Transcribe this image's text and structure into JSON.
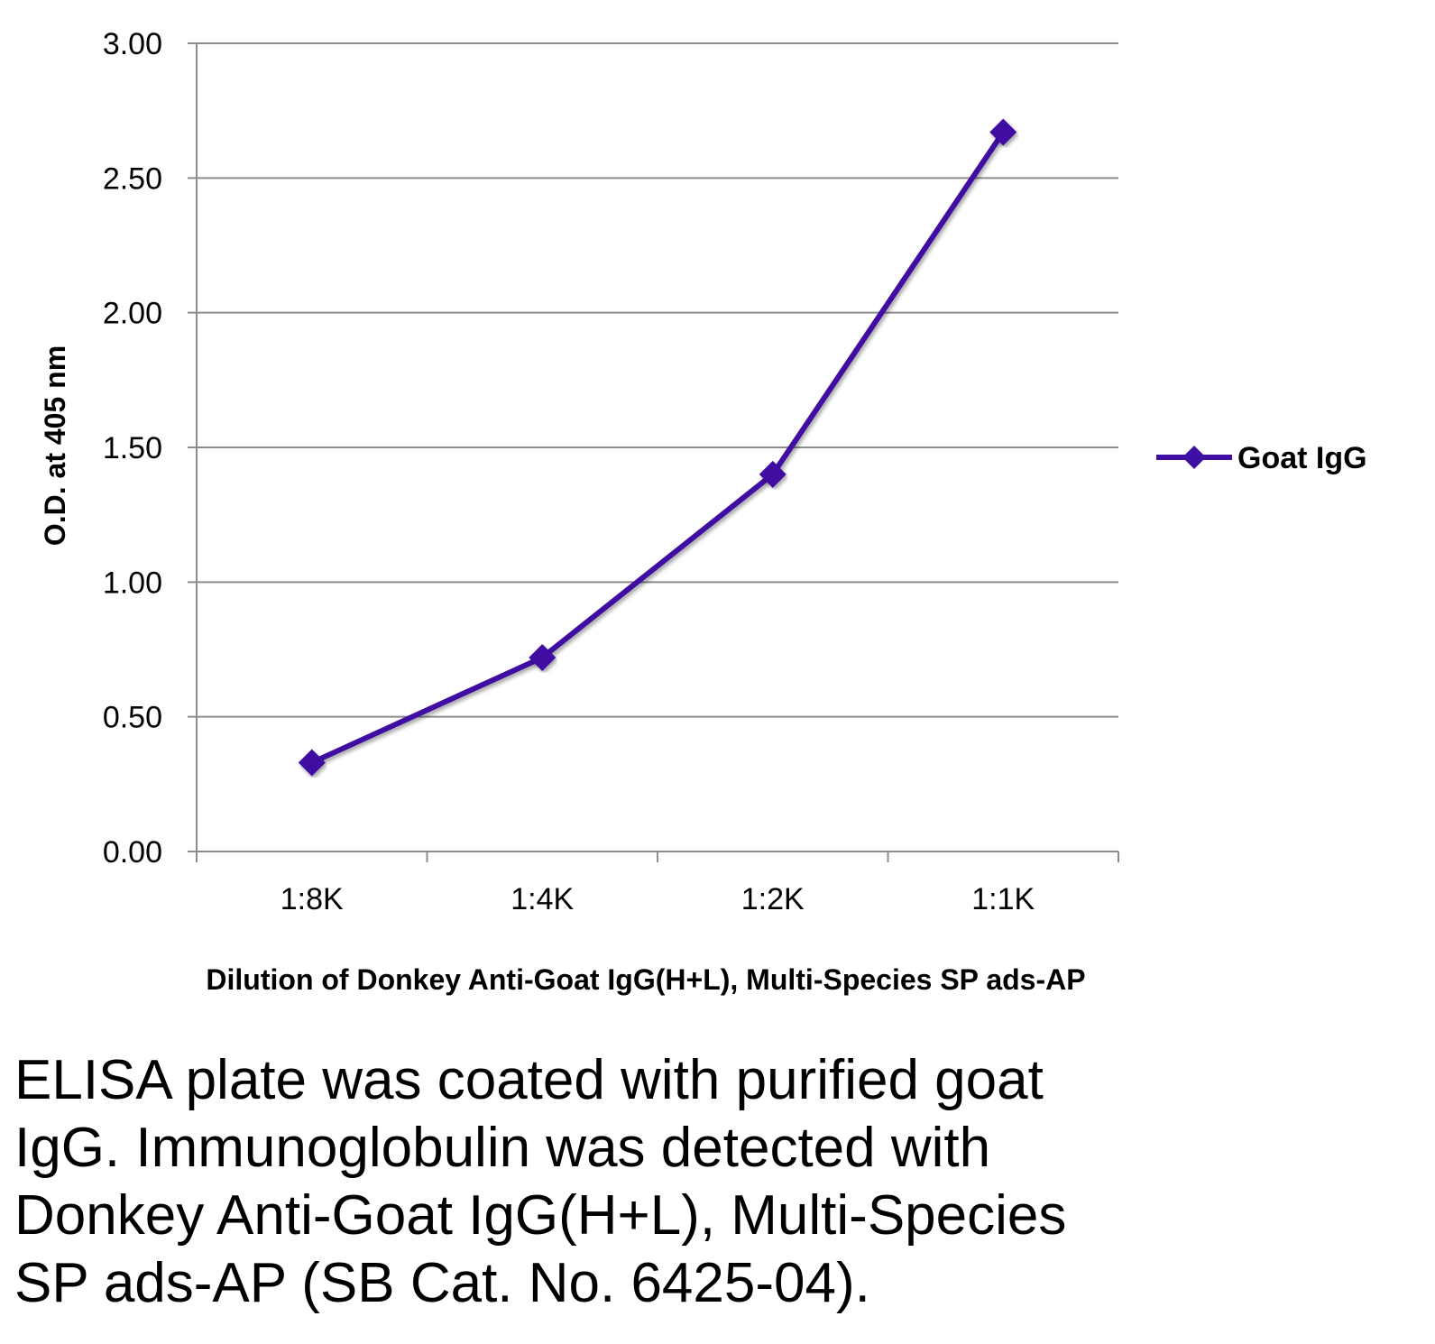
{
  "chart_data": {
    "type": "line",
    "categories": [
      "1:8K",
      "1:4K",
      "1:2K",
      "1:1K"
    ],
    "series": [
      {
        "name": "Goat IgG",
        "values": [
          0.33,
          0.72,
          1.4,
          2.67
        ]
      }
    ],
    "yticks": [
      "0.00",
      "0.50",
      "1.00",
      "1.50",
      "2.00",
      "2.50",
      "3.00"
    ],
    "ylim": [
      0,
      3
    ],
    "xlabel": "Dilution of Donkey Anti-Goat IgG(H+L), Multi-Species SP ads-AP",
    "ylabel": "O.D. at 405 nm",
    "grid": true,
    "legend_position": "right",
    "colors": {
      "series": "#3f0fa3",
      "grid": "#8c8c8c"
    }
  },
  "caption": {
    "lines": [
      "ELISA plate was coated with purified goat",
      "IgG.  Immunoglobulin was detected with",
      "Donkey Anti-Goat IgG(H+L), Multi-Species",
      "SP ads-AP (SB Cat. No. 6425-04)."
    ]
  }
}
